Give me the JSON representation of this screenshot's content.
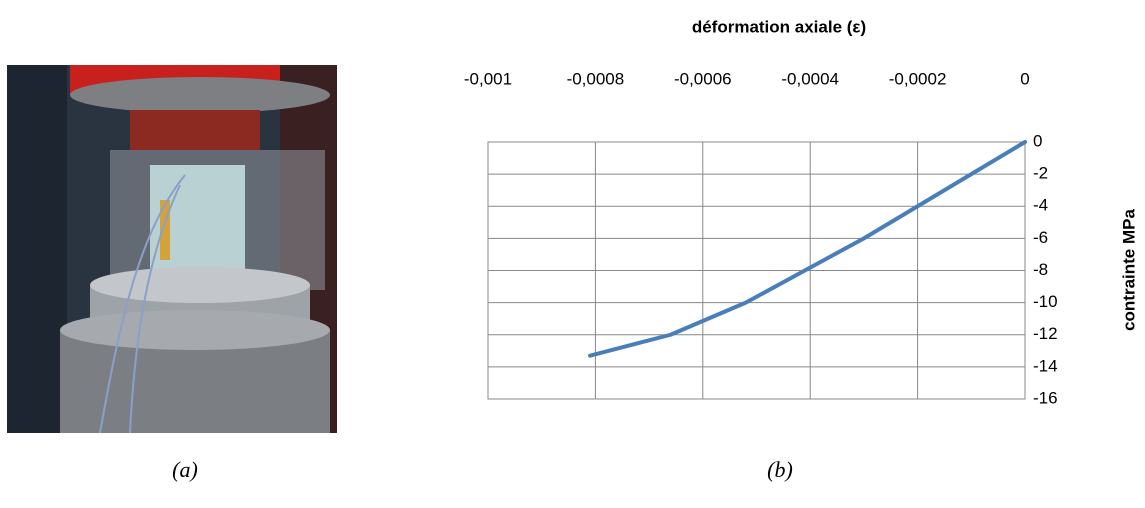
{
  "chart_data": {
    "type": "line",
    "x_label": "déformation axiale  (ε)",
    "y_label": "contrainte MPa",
    "x": [
      0,
      -0.0001,
      -0.0002,
      -0.0003,
      -0.00041,
      -0.00052,
      -0.00066,
      -0.00081
    ],
    "values": [
      0,
      -2,
      -4,
      -6,
      -8,
      -10,
      -12,
      -13.3
    ],
    "color": "#4a7ebb",
    "xlim": [
      -0.001,
      0
    ],
    "xticks": [
      {
        "value": -0.001,
        "label": "-0,001"
      },
      {
        "value": -0.0008,
        "label": "-0,0008"
      },
      {
        "value": -0.0006,
        "label": "-0,0006"
      },
      {
        "value": -0.0004,
        "label": "-0,0004"
      },
      {
        "value": -0.0002,
        "label": "-0,0002"
      },
      0
    ],
    "ylim": [
      -16,
      0
    ],
    "yticks": [
      0,
      -2,
      -4,
      -6,
      -8,
      -10,
      -12,
      -14,
      -16
    ],
    "grid": true
  },
  "captions": [
    "(a)",
    "(b)"
  ]
}
